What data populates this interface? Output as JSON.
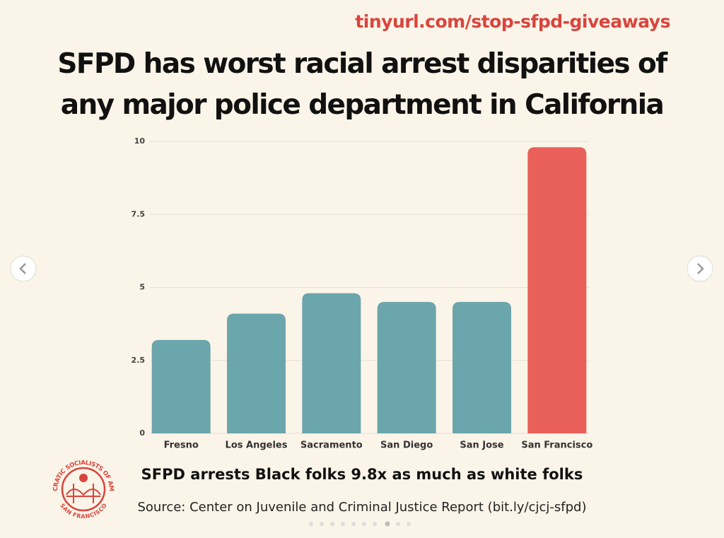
{
  "link": "tinyurl.com/stop-sfpd-giveaways",
  "chart_data": {
    "type": "bar",
    "title": "SFPD has worst racial arrest disparities of any major police department in California",
    "categories": [
      "Fresno",
      "Los Angeles",
      "Sacramento",
      "San Diego",
      "San Jose",
      "San Francisco"
    ],
    "values": [
      3.2,
      4.1,
      4.8,
      4.5,
      4.5,
      9.8
    ],
    "colors": [
      "#6aa6ab",
      "#6aa6ab",
      "#6aa6ab",
      "#6aa6ab",
      "#6aa6ab",
      "#e9605a"
    ],
    "ylim": [
      0,
      10
    ],
    "yticks": [
      0,
      2.5,
      5,
      7.5,
      10
    ],
    "grid": true
  },
  "caption": "SFPD arrests Black folks 9.8x as much as white folks",
  "source": "Source: Center on Juvenile and Criminal Justice Report (bit.ly/cjcj-sfpd)",
  "logo": {
    "top": "DEMOCRATIC SOCIALISTS OF AMERICA",
    "bottom": "SAN FRANCISCO"
  }
}
